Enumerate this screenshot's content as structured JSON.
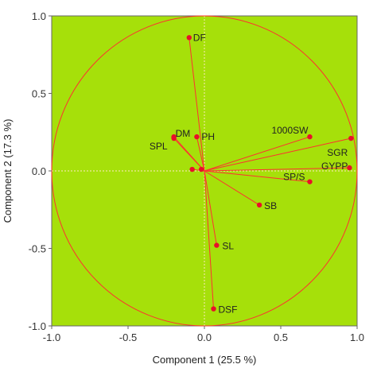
{
  "chart_data": {
    "type": "scatter",
    "subtype": "pca-loading-plot",
    "xlabel": "Component 1  (25.5 %)",
    "ylabel": "Component 2  (17.3 %)",
    "xlim": [
      -1.0,
      1.0
    ],
    "ylim": [
      -1.0,
      1.0
    ],
    "x_ticks": [
      "-1.0",
      "-0.5",
      "0.0",
      "0.5",
      "1.0"
    ],
    "y_ticks": [
      "1.0",
      "0.5",
      "0.0",
      "-0.5",
      "-1.0"
    ],
    "x_tick_values": [
      -1.0,
      -0.5,
      0.0,
      0.5,
      1.0
    ],
    "y_tick_values": [
      1.0,
      0.5,
      0.0,
      -0.5,
      -1.0
    ],
    "correlation_circle_radius": 1.0,
    "zero_reference_lines": true,
    "grid": false,
    "legend": "none",
    "colors": {
      "plot_background": "#a6e00a",
      "arrows": "#ff3030",
      "points": "#e8102a",
      "zero_lines": "#f0e8a0",
      "frame": "#666666"
    },
    "variables": [
      {
        "label": "DF",
        "x": -0.1,
        "y": 0.86
      },
      {
        "label": "DM",
        "x": -0.2,
        "y": 0.22
      },
      {
        "label": "PH",
        "x": -0.05,
        "y": 0.22
      },
      {
        "label": "SPL",
        "x": -0.2,
        "y": 0.21
      },
      {
        "label": "1000SW",
        "x": 0.69,
        "y": 0.22
      },
      {
        "label": "SGR",
        "x": 0.96,
        "y": 0.21
      },
      {
        "label": "GYPP",
        "x": 0.95,
        "y": 0.02
      },
      {
        "label": "SP/S",
        "x": 0.69,
        "y": -0.07
      },
      {
        "label": "SB",
        "x": 0.36,
        "y": -0.22
      },
      {
        "label": "SL",
        "x": 0.08,
        "y": -0.48
      },
      {
        "label": "DSF",
        "x": 0.06,
        "y": -0.89
      },
      {
        "label": "",
        "x": -0.08,
        "y": 0.01
      },
      {
        "label": "",
        "x": -0.02,
        "y": 0.01
      }
    ]
  }
}
